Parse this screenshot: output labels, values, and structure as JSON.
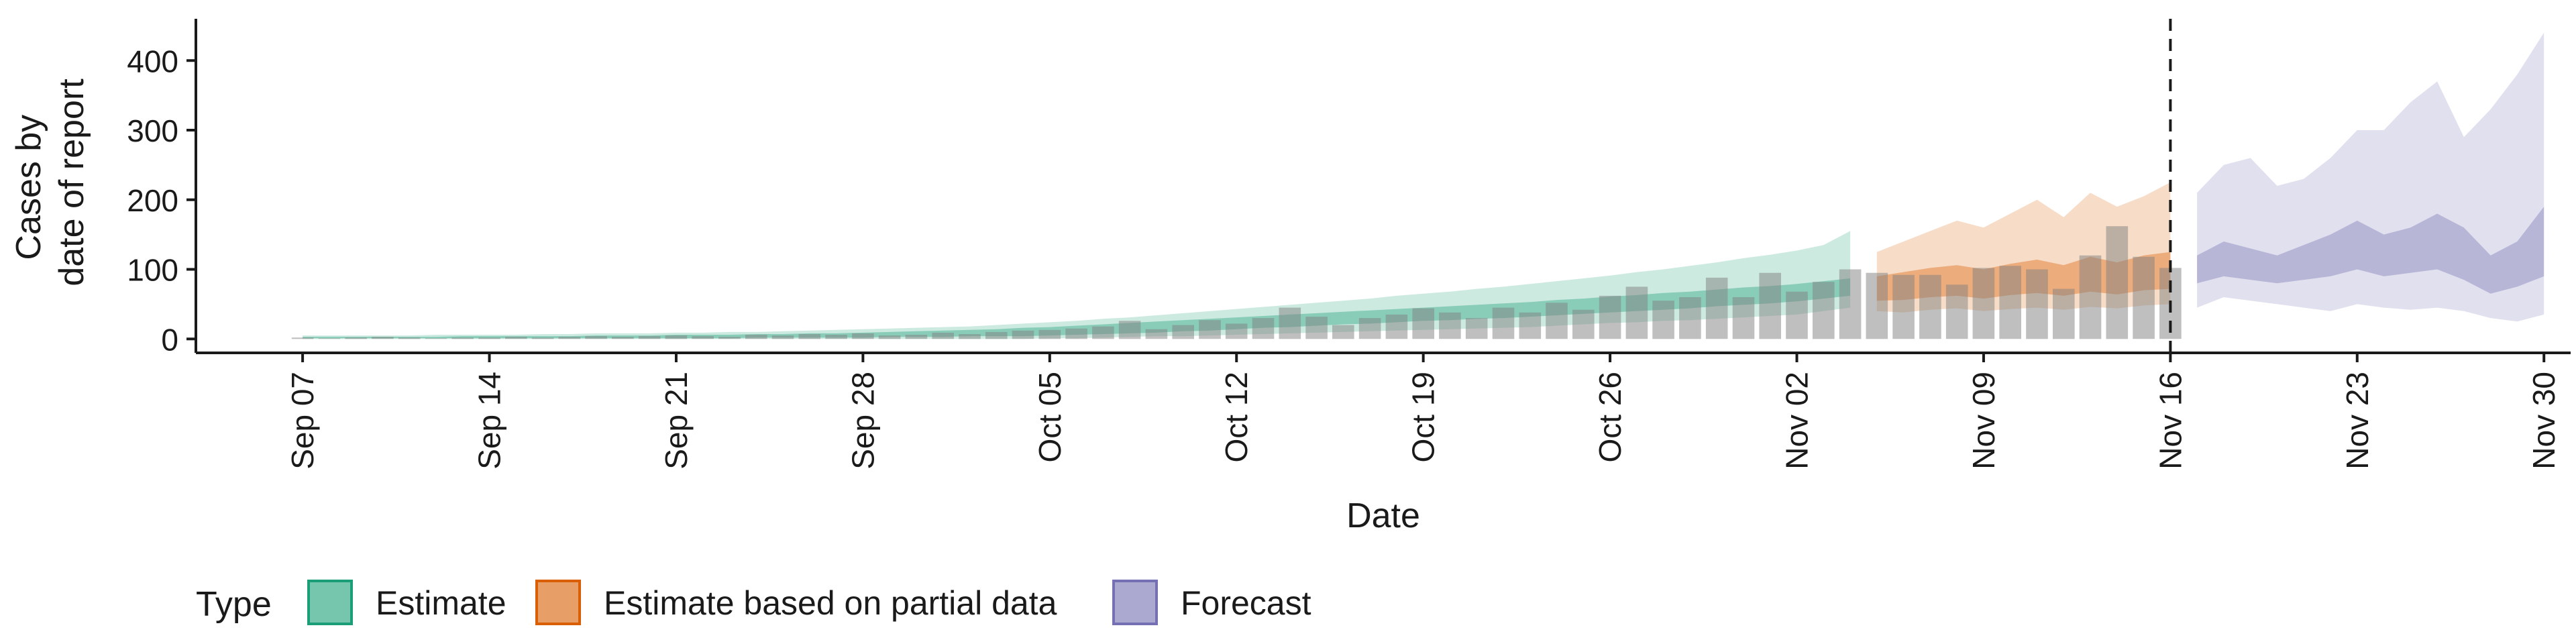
{
  "chart_data": {
    "type": "area",
    "title": "",
    "xlabel": "Date",
    "ylabel_lines": [
      "Cases by",
      "date of report"
    ],
    "ylim": [
      -20,
      460
    ],
    "yticks": [
      0,
      100,
      200,
      300,
      400
    ],
    "xlim_day_index": [
      -4,
      85
    ],
    "x_ticks": [
      {
        "label": "Sep 07",
        "day": 0
      },
      {
        "label": "Sep 14",
        "day": 7
      },
      {
        "label": "Sep 21",
        "day": 14
      },
      {
        "label": "Sep 28",
        "day": 21
      },
      {
        "label": "Oct 05",
        "day": 28
      },
      {
        "label": "Oct 12",
        "day": 35
      },
      {
        "label": "Oct 19",
        "day": 42
      },
      {
        "label": "Oct 26",
        "day": 49
      },
      {
        "label": "Nov 02",
        "day": 56
      },
      {
        "label": "Nov 09",
        "day": 63
      },
      {
        "label": "Nov 16",
        "day": 70
      },
      {
        "label": "Nov 23",
        "day": 77
      },
      {
        "label": "Nov 30",
        "day": 84
      }
    ],
    "grid": false,
    "vline": {
      "day": 70,
      "style": "dashed",
      "color": "#1a1a1a"
    },
    "reported_cases": {
      "start_day": 0,
      "color": "#7f7f7f",
      "values": [
        2,
        1,
        2,
        3,
        2,
        1,
        2,
        2,
        3,
        2,
        3,
        4,
        3,
        4,
        5,
        4,
        3,
        6,
        5,
        7,
        6,
        8,
        5,
        6,
        9,
        7,
        10,
        12,
        13,
        15,
        18,
        26,
        14,
        20,
        27,
        22,
        30,
        45,
        32,
        20,
        30,
        35,
        44,
        38,
        30,
        45,
        38,
        52,
        42,
        62,
        75,
        55,
        60,
        88,
        60,
        95,
        68,
        82,
        100,
        95,
        92,
        92,
        78,
        102,
        105,
        100,
        72,
        120,
        162,
        118,
        102
      ]
    },
    "legend": {
      "title": "Type",
      "position": "bottom",
      "entries": [
        "Estimate",
        "Estimate based on partial data",
        "Forecast"
      ]
    },
    "series": [
      {
        "name": "Estimate",
        "color": "#1b9e77",
        "x_day": [
          0,
          1,
          2,
          3,
          4,
          5,
          6,
          7,
          8,
          9,
          10,
          11,
          12,
          13,
          14,
          15,
          16,
          17,
          18,
          19,
          20,
          21,
          22,
          23,
          24,
          25,
          26,
          27,
          28,
          29,
          30,
          31,
          32,
          33,
          34,
          35,
          36,
          37,
          38,
          39,
          40,
          41,
          42,
          43,
          44,
          45,
          46,
          47,
          48,
          49,
          50,
          51,
          52,
          53,
          54,
          55,
          56,
          57,
          58
        ],
        "lower90": [
          0,
          0,
          0,
          0,
          0,
          0,
          0,
          0,
          0,
          0,
          0,
          0,
          0,
          0,
          0,
          0,
          0,
          0,
          0,
          0,
          0,
          0,
          0,
          0,
          0,
          0,
          0,
          0,
          1,
          1,
          2,
          3,
          4,
          4,
          5,
          6,
          7,
          8,
          9,
          10,
          11,
          12,
          13,
          14,
          15,
          16,
          17,
          19,
          21,
          23,
          24,
          26,
          27,
          29,
          31,
          33,
          35,
          40,
          45
        ],
        "lower50": [
          1,
          1,
          1,
          1,
          1,
          1,
          1,
          1,
          1,
          1,
          1,
          1,
          1,
          1,
          1,
          1,
          1,
          2,
          2,
          2,
          2,
          2,
          3,
          3,
          3,
          4,
          4,
          4,
          5,
          6,
          7,
          8,
          9,
          11,
          12,
          14,
          16,
          17,
          19,
          21,
          22,
          24,
          26,
          27,
          29,
          30,
          32,
          34,
          36,
          38,
          40,
          42,
          44,
          47,
          49,
          51,
          54,
          58,
          62
        ],
        "upper50": [
          3,
          3,
          3,
          3,
          3,
          3,
          4,
          4,
          4,
          4,
          4,
          5,
          5,
          5,
          6,
          6,
          6,
          7,
          7,
          8,
          8,
          9,
          10,
          11,
          12,
          13,
          14,
          16,
          17,
          19,
          21,
          23,
          25,
          27,
          29,
          31,
          33,
          35,
          37,
          39,
          41,
          43,
          45,
          47,
          49,
          51,
          53,
          56,
          58,
          61,
          63,
          66,
          68,
          71,
          74,
          76,
          79,
          83,
          87
        ],
        "upper90": [
          5,
          5,
          5,
          5,
          5,
          6,
          6,
          6,
          6,
          7,
          7,
          8,
          8,
          8,
          9,
          9,
          10,
          10,
          11,
          12,
          13,
          14,
          15,
          16,
          17,
          18,
          20,
          22,
          24,
          26,
          29,
          31,
          34,
          37,
          40,
          43,
          46,
          49,
          52,
          55,
          58,
          62,
          65,
          68,
          72,
          75,
          79,
          83,
          87,
          91,
          96,
          100,
          105,
          110,
          116,
          121,
          127,
          135,
          155
        ]
      },
      {
        "name": "Estimate based on partial data",
        "color": "#d95f02",
        "x_day": [
          59,
          60,
          61,
          62,
          63,
          64,
          65,
          66,
          67,
          68,
          69,
          70
        ],
        "lower90": [
          40,
          38,
          42,
          44,
          40,
          43,
          45,
          42,
          46,
          44,
          48,
          50
        ],
        "lower50": [
          55,
          56,
          60,
          62,
          58,
          63,
          66,
          62,
          68,
          64,
          70,
          72
        ],
        "upper50": [
          90,
          96,
          102,
          106,
          100,
          108,
          114,
          106,
          118,
          110,
          120,
          125
        ],
        "upper90": [
          125,
          140,
          155,
          170,
          160,
          180,
          200,
          175,
          210,
          190,
          205,
          225
        ]
      },
      {
        "name": "Forecast",
        "color": "#7570b3",
        "x_day": [
          71,
          72,
          73,
          74,
          75,
          76,
          77,
          78,
          79,
          80,
          81,
          82,
          83,
          84
        ],
        "lower90": [
          45,
          60,
          55,
          50,
          45,
          40,
          50,
          45,
          42,
          45,
          40,
          30,
          25,
          35
        ],
        "lower50": [
          80,
          90,
          85,
          80,
          85,
          90,
          100,
          90,
          95,
          100,
          85,
          65,
          75,
          90
        ],
        "upper50": [
          120,
          140,
          130,
          120,
          135,
          150,
          170,
          150,
          160,
          180,
          160,
          120,
          140,
          190
        ],
        "upper90": [
          210,
          250,
          260,
          220,
          230,
          260,
          300,
          300,
          340,
          370,
          290,
          330,
          380,
          440
        ]
      }
    ]
  }
}
